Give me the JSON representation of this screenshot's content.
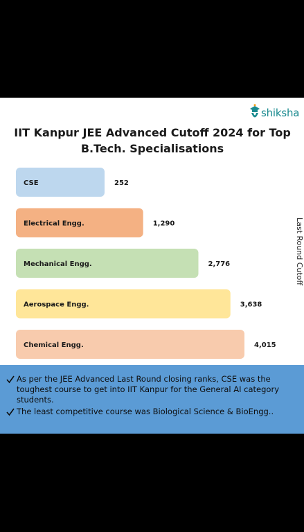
{
  "brand": {
    "name": "shiksha"
  },
  "chart_data": {
    "type": "bar",
    "orientation": "horizontal",
    "title": "IIT Kanpur JEE Advanced Cutoff 2024 for Top B.Tech. Specialisations",
    "ylabel": "Last Round Cutoff",
    "categories": [
      "CSE",
      "Electrical Engg.",
      "Mechanical Engg.",
      "Aerospace Engg.",
      "Chemical Engg."
    ],
    "values": [
      252,
      1290,
      2776,
      3638,
      4015
    ],
    "value_labels": [
      "252",
      "1,290",
      "2,776",
      "3,638",
      "4,015"
    ],
    "colors": [
      "#bdd7ee",
      "#f4b183",
      "#c5e0b4",
      "#ffe699",
      "#f8cbad"
    ],
    "grid": false,
    "legend": "none"
  },
  "notes": [
    "As per the JEE Advanced Last Round closing ranks, CSE was the toughest course to get into IIT Kanpur for the General AI category students.",
    "The least competitive course was Biological Science & BioEngg.."
  ]
}
